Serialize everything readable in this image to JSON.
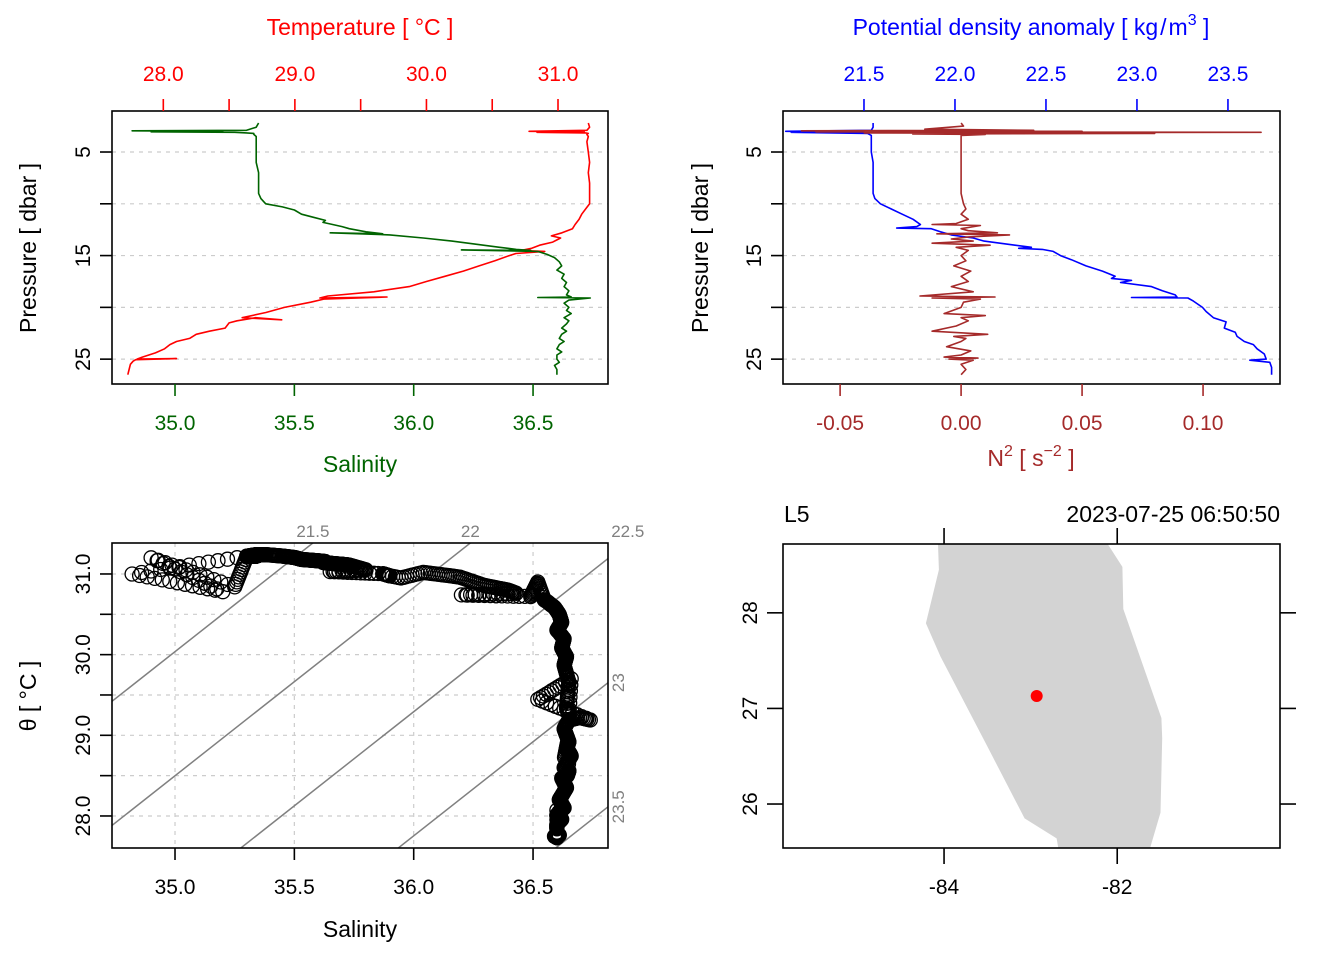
{
  "chart_data": [
    {
      "id": "profile_ts",
      "type": "line",
      "title": "",
      "top_axis_label": "Temperature [ °C ]",
      "bottom_axis_label": "Salinity",
      "ylabel": "Pressure [ dbar ]",
      "temperature_axis": {
        "range": [
          27.61,
          31.38
        ],
        "ticks": [
          28.0,
          28.5,
          29.0,
          29.5,
          30.0,
          30.5,
          31.0
        ],
        "tick_labels": [
          "28.0",
          "",
          "29.0",
          "",
          "30.0",
          "",
          "31.0"
        ],
        "color": "#ff0000"
      },
      "salinity_axis": {
        "range": [
          34.736,
          36.814
        ],
        "ticks": [
          35.0,
          35.5,
          36.0,
          36.5
        ],
        "tick_labels": [
          "35.0",
          "35.5",
          "36.0",
          "36.5"
        ],
        "color": "#006400"
      },
      "pressure_axis": {
        "range": [
          27.4,
          1.04
        ],
        "ticks": [
          5,
          10,
          15,
          20,
          25
        ],
        "tick_labels": [
          "5",
          "",
          "15",
          "",
          "25"
        ],
        "reversed": true
      },
      "grid": "horizontal-dashed",
      "series": [
        {
          "name": "Temperature",
          "color": "#ff0000",
          "axis": "temperature",
          "pressure": [
            2.2,
            2.6,
            2.9,
            3.0,
            3.05,
            3.1,
            3.15,
            3.2,
            3.3,
            3.5,
            4,
            5,
            6,
            7,
            8,
            9,
            10,
            10.5,
            11,
            11.5,
            12,
            12.4,
            12.8,
            13.1,
            13.3,
            13.5,
            13.7,
            14,
            14.3,
            14.5,
            14.6,
            14.8,
            15,
            15.5,
            16,
            16.5,
            17,
            17.5,
            18,
            18.5,
            18.9,
            19.1,
            19.0,
            19.2,
            19.5,
            20,
            20.5,
            21,
            21.2,
            21.0,
            21.3,
            21.5,
            22,
            22.3,
            22.6,
            23,
            23.3,
            23.6,
            24,
            24.4,
            24.8,
            25.0,
            24.95,
            25.05,
            25.2,
            25.5,
            26,
            26.5
          ],
          "values": [
            31.23,
            31.24,
            31.22,
            30.78,
            31.2,
            30.84,
            31.21,
            31.23,
            31.22,
            31.23,
            31.22,
            31.23,
            31.24,
            31.23,
            31.24,
            31.24,
            31.24,
            31.21,
            31.18,
            31.16,
            31.13,
            31.11,
            31.03,
            30.95,
            31.02,
            30.99,
            30.96,
            30.86,
            30.8,
            30.72,
            30.9,
            30.68,
            30.63,
            30.52,
            30.4,
            30.28,
            30.14,
            30.0,
            29.87,
            29.6,
            29.25,
            29.19,
            29.7,
            29.22,
            29.12,
            28.92,
            28.78,
            28.6,
            28.9,
            28.7,
            28.56,
            28.5,
            28.47,
            28.35,
            28.25,
            28.2,
            28.1,
            28.05,
            28.01,
            27.94,
            27.84,
            27.8,
            28.1,
            27.79,
            27.77,
            27.75,
            27.74,
            27.73
          ]
        },
        {
          "name": "Salinity",
          "color": "#006400",
          "axis": "salinity",
          "pressure": [
            2.2,
            2.6,
            2.9,
            2.95,
            3.0,
            3.05,
            3.1,
            3.15,
            3.2,
            3.3,
            3.5,
            4,
            5,
            6,
            7,
            8,
            9,
            9.5,
            10,
            10.3,
            10.6,
            11,
            11.3,
            11.6,
            11.8,
            12.0,
            12.2,
            12.4,
            12.7,
            12.9,
            12.8,
            13.0,
            13.3,
            13.6,
            13.9,
            14.2,
            14.4,
            14.5,
            14.45,
            14.6,
            14.9,
            15.2,
            15.6,
            16,
            16.4,
            16.8,
            17.2,
            17.6,
            18,
            18.4,
            18.8,
            19.0,
            19.05,
            19.1,
            19.3,
            19.6,
            20,
            20.3,
            20.6,
            21,
            21.3,
            21.6,
            22,
            22.3,
            22.6,
            23,
            23.3,
            23.6,
            24,
            24.3,
            24.6,
            25,
            25.3,
            25.6,
            26,
            26.5
          ],
          "values": [
            35.35,
            35.34,
            35.3,
            34.82,
            35.2,
            34.9,
            35.25,
            35.3,
            35.33,
            35.33,
            35.34,
            35.34,
            35.34,
            35.34,
            35.35,
            35.35,
            35.35,
            35.36,
            35.38,
            35.45,
            35.5,
            35.53,
            35.58,
            35.63,
            35.62,
            35.66,
            35.7,
            35.73,
            35.8,
            35.87,
            35.65,
            35.9,
            36.04,
            36.16,
            36.26,
            36.36,
            36.43,
            36.49,
            36.2,
            36.52,
            36.56,
            36.59,
            36.61,
            36.62,
            36.6,
            36.63,
            36.62,
            36.64,
            36.63,
            36.65,
            36.64,
            36.66,
            36.52,
            36.74,
            36.65,
            36.63,
            36.65,
            36.64,
            36.66,
            36.63,
            36.65,
            36.64,
            36.62,
            36.64,
            36.62,
            36.61,
            36.63,
            36.61,
            36.6,
            36.62,
            36.6,
            36.6,
            36.61,
            36.59,
            36.6,
            36.6
          ]
        }
      ]
    },
    {
      "id": "profile_density_n2",
      "type": "line",
      "title": "",
      "top_axis_label": "Potential density anomaly [ kg/m3 ]",
      "bottom_axis_label": "N2 [ s-2 ]",
      "ylabel": "Pressure [ dbar ]",
      "density_axis": {
        "range": [
          21.055,
          23.786
        ],
        "ticks": [
          21.5,
          22.0,
          22.5,
          23.0,
          23.5
        ],
        "tick_labels": [
          "21.5",
          "22.0",
          "22.5",
          "23.0",
          "23.5"
        ],
        "color": "#0000ff"
      },
      "n2_axis": {
        "range": [
          -0.0736,
          0.1318
        ],
        "ticks": [
          -0.05,
          0.0,
          0.05,
          0.1
        ],
        "tick_labels": [
          "-0.05",
          "0.00",
          "0.05",
          "0.10"
        ],
        "color": "#a52a2a"
      },
      "pressure_axis": {
        "range": [
          27.4,
          1.04
        ],
        "ticks": [
          5,
          10,
          15,
          20,
          25
        ],
        "tick_labels": [
          "5",
          "",
          "15",
          "",
          "25"
        ],
        "reversed": true
      },
      "grid": "horizontal-dashed",
      "series": [
        {
          "name": "Potential density anomaly",
          "color": "#0000ff",
          "axis": "density",
          "pressure": [
            2.2,
            2.6,
            2.9,
            3.0,
            3.05,
            3.1,
            3.2,
            3.4,
            4,
            5,
            6,
            7,
            8,
            9,
            9.5,
            10,
            10.5,
            11,
            11.5,
            12,
            12.2,
            12.35,
            12.4,
            12.7,
            13,
            13.3,
            13.6,
            14,
            14.2,
            14.3,
            14.4,
            14.6,
            15,
            15.4,
            16,
            16.5,
            17,
            17.2,
            17.4,
            17.6,
            18,
            18.4,
            18.8,
            19.0,
            19.05,
            19.1,
            19.4,
            20,
            20.4,
            21,
            21.4,
            22,
            22.4,
            22.8,
            23.3,
            23.6,
            24,
            24.5,
            25,
            25.1,
            25.3,
            25.8,
            26.5
          ],
          "values": [
            21.55,
            21.55,
            21.54,
            21.07,
            21.5,
            21.1,
            21.52,
            21.54,
            21.54,
            21.54,
            21.55,
            21.55,
            21.55,
            21.55,
            21.56,
            21.59,
            21.65,
            21.71,
            21.77,
            21.81,
            21.79,
            21.68,
            21.87,
            21.92,
            21.98,
            22.1,
            22.16,
            22.33,
            22.42,
            22.35,
            22.48,
            22.54,
            22.58,
            22.64,
            22.72,
            22.81,
            22.88,
            22.86,
            22.97,
            22.91,
            23.08,
            23.14,
            23.21,
            23.22,
            22.97,
            23.28,
            23.31,
            23.36,
            23.38,
            23.42,
            23.49,
            23.48,
            23.54,
            23.55,
            23.59,
            23.64,
            23.66,
            23.7,
            23.71,
            23.62,
            23.73,
            23.74,
            23.74
          ]
        },
        {
          "name": "N2",
          "color": "#a52a2a",
          "axis": "n2",
          "pressure": [
            2.2,
            2.5,
            2.8,
            2.9,
            2.95,
            3.0,
            3.05,
            3.1,
            3.15,
            3.2,
            3.25,
            3.3,
            3.4,
            3.6,
            4,
            5,
            6,
            7,
            8,
            9,
            10,
            10.5,
            11,
            11.5,
            11.9,
            12.0,
            12.1,
            12.4,
            12.6,
            12.8,
            12.9,
            13.0,
            13.2,
            13.4,
            13.6,
            13.8,
            14.0,
            14.2,
            14.5,
            15,
            15.5,
            16,
            16.5,
            17,
            17.5,
            18,
            18.5,
            18.9,
            19.0,
            19.1,
            19.2,
            19.5,
            20,
            20.6,
            20.8,
            21.0,
            21.3,
            21.8,
            22.3,
            22.6,
            22.8,
            23.0,
            23.3,
            23.8,
            24.2,
            24.6,
            24.8,
            24.9,
            25.0,
            25.1,
            25.5,
            26,
            26.5
          ],
          "values": [
            0.0,
            0.001,
            -0.015,
            0.03,
            -0.066,
            0.05,
            -0.06,
            0.124,
            -0.04,
            0.08,
            -0.02,
            0.01,
            0.0,
            0.0,
            0.0,
            0.0,
            0.0,
            0.0,
            0.0,
            0.0,
            0.001,
            0.002,
            0.0,
            0.003,
            -0.002,
            -0.012,
            0.008,
            0.0,
            0.003,
            0.015,
            -0.01,
            0.02,
            0.003,
            -0.004,
            0.005,
            -0.012,
            0.012,
            -0.002,
            0.003,
            0.0,
            0.002,
            -0.003,
            0.004,
            0.0,
            0.003,
            -0.004,
            0.005,
            -0.017,
            0.014,
            -0.012,
            0.008,
            0.001,
            0.0,
            -0.007,
            0.01,
            0.0,
            0.003,
            -0.002,
            -0.012,
            0.011,
            -0.003,
            0.002,
            0.0,
            -0.006,
            0.004,
            0.0,
            -0.007,
            0.007,
            -0.005,
            0.005,
            0.0,
            0.002,
            0.0
          ]
        }
      ]
    },
    {
      "id": "ts_diagram",
      "type": "scatter",
      "title": "",
      "xlabel": "Salinity",
      "ylabel": "θ [ °C ]",
      "xlim": [
        34.736,
        36.814
      ],
      "ylim": [
        27.603,
        31.384
      ],
      "xticks": [
        35.0,
        35.5,
        36.0,
        36.5
      ],
      "xtick_labels": [
        "35.0",
        "35.5",
        "36.0",
        "36.5"
      ],
      "yticks": [
        28.0,
        28.5,
        29.0,
        29.5,
        30.0,
        30.5,
        31.0
      ],
      "ytick_labels": [
        "28.0",
        "",
        "29.0",
        "",
        "30.0",
        "",
        "31.0"
      ],
      "grid": "dashed",
      "marker": "open-circle",
      "isopycnals": [
        {
          "label": "21.5",
          "sigma": 21.5,
          "label_side": "top"
        },
        {
          "label": "22",
          "sigma": 22.0,
          "label_side": "top"
        },
        {
          "label": "22.5",
          "sigma": 22.5,
          "label_side": "top"
        },
        {
          "label": "23",
          "sigma": 23.0,
          "label_side": "right"
        },
        {
          "label": "23.5",
          "sigma": 23.5,
          "label_side": "right"
        }
      ],
      "points_from_profile": "profile_ts"
    },
    {
      "id": "station_map",
      "type": "scatter",
      "title_left": "L5",
      "title_right": "2023-07-25 06:50:50",
      "xlim": [
        -85.86,
        -80.12
      ],
      "ylim": [
        25.54,
        28.72
      ],
      "xticks": [
        -84,
        -82
      ],
      "xtick_labels": [
        "-84",
        "-82"
      ],
      "yticks": [
        26,
        27,
        28
      ],
      "ytick_labels": [
        "26",
        "27",
        "28"
      ],
      "land_color": "#d3d3d3",
      "land_polygon": [
        [
          -84.07,
          28.72
        ],
        [
          -82.11,
          28.72
        ],
        [
          -81.94,
          28.48
        ],
        [
          -81.93,
          28.04
        ],
        [
          -81.49,
          26.9
        ],
        [
          -81.48,
          26.69
        ],
        [
          -81.5,
          25.91
        ],
        [
          -81.62,
          25.54
        ],
        [
          -82.68,
          25.54
        ],
        [
          -82.7,
          25.64
        ],
        [
          -83.07,
          25.85
        ],
        [
          -83.51,
          26.62
        ],
        [
          -84.04,
          27.54
        ],
        [
          -84.21,
          27.89
        ],
        [
          -84.06,
          28.45
        ]
      ],
      "station": {
        "lon": -82.93,
        "lat": 27.13,
        "color": "#ff0000",
        "label": "L5"
      }
    }
  ]
}
